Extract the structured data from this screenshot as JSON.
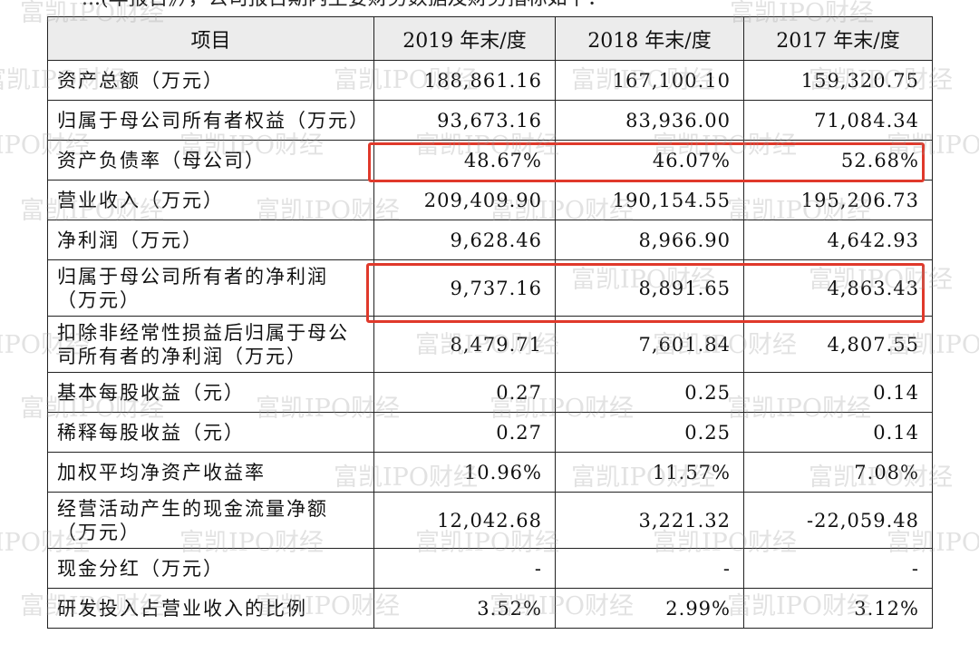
{
  "top_text": "...(年报告》），公司报告期内主要财务数据及财务指标如下：",
  "table": {
    "headers": [
      "项目",
      "2019 年末/度",
      "2018 年末/度",
      "2017 年末/度"
    ],
    "rows": [
      {
        "label": "资产总额（万元）",
        "v2019": "188,861.16",
        "v2018": "167,100.10",
        "v2017": "159,320.75"
      },
      {
        "label": "归属于母公司所有者权益（万元）",
        "v2019": "93,673.16",
        "v2018": "83,936.00",
        "v2017": "71,084.34"
      },
      {
        "label": "资产负债率（母公司）",
        "v2019": "48.67%",
        "v2018": "46.07%",
        "v2017": "52.68%",
        "highlighted": true
      },
      {
        "label": "营业收入（万元）",
        "v2019": "209,409.90",
        "v2018": "190,154.55",
        "v2017": "195,206.73"
      },
      {
        "label": "净利润（万元）",
        "v2019": "9,628.46",
        "v2018": "8,966.90",
        "v2017": "4,642.93"
      },
      {
        "label": "归属于母公司所有者的净利润（万元）",
        "v2019": "9,737.16",
        "v2018": "8,891.65",
        "v2017": "4,863.43",
        "highlighted": true
      },
      {
        "label": "扣除非经常性损益后归属于母公司所有者的净利润（万元）",
        "v2019": "8,479.71",
        "v2018": "7,601.84",
        "v2017": "4,807.55"
      },
      {
        "label": "基本每股收益（元）",
        "v2019": "0.27",
        "v2018": "0.25",
        "v2017": "0.14"
      },
      {
        "label": "稀释每股收益（元）",
        "v2019": "0.27",
        "v2018": "0.25",
        "v2017": "0.14"
      },
      {
        "label": "加权平均净资产收益率",
        "v2019": "10.96%",
        "v2018": "11.57%",
        "v2017": "7.08%"
      },
      {
        "label": "经营活动产生的现金流量净额（万元）",
        "v2019": "12,042.68",
        "v2018": "3,221.32",
        "v2017": "-22,059.48"
      },
      {
        "label": "现金分红（万元）",
        "v2019": "-",
        "v2018": "-",
        "v2017": "-"
      },
      {
        "label": "研发投入占营业收入的比例",
        "v2019": "3.52%",
        "v2018": "2.99%",
        "v2017": "3.12%"
      }
    ]
  },
  "watermark": "富凯IPO财经",
  "colors": {
    "highlight": "#e0392b",
    "header_bg": "#ececec"
  }
}
